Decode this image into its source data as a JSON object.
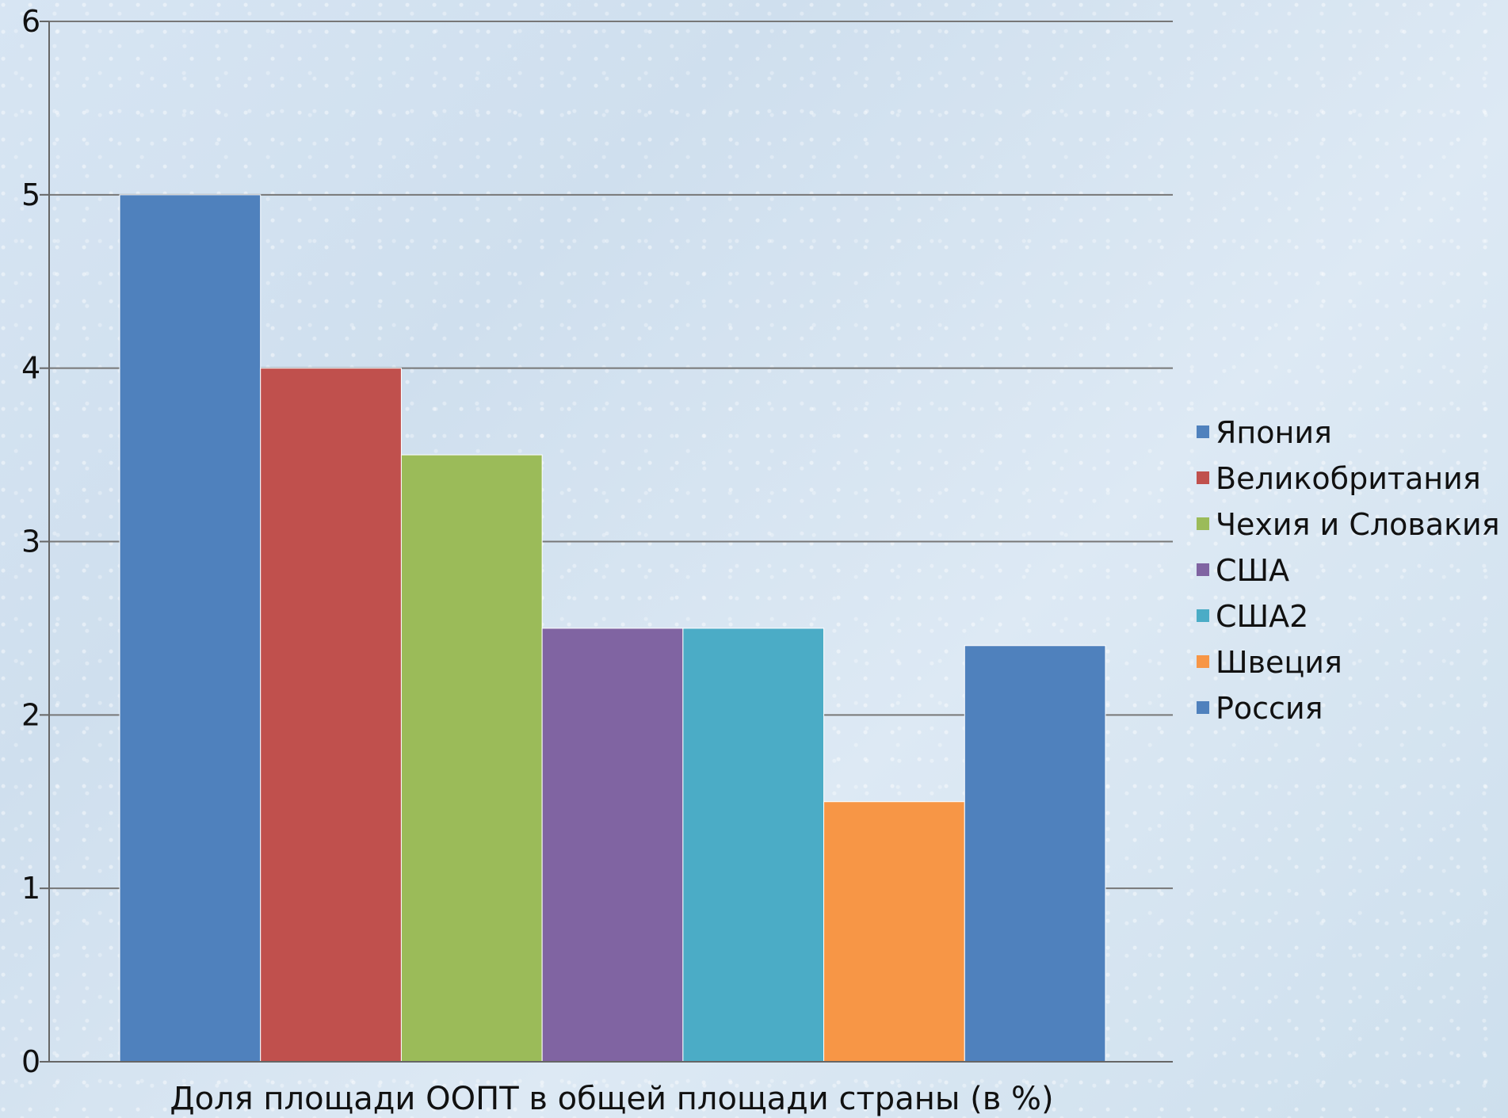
{
  "chart_data": {
    "type": "bar",
    "categories": [
      "Доля площади ООПТ в общей площади страны (в %)"
    ],
    "series": [
      {
        "name": "Япония",
        "values": [
          5.0
        ],
        "color": "#4F81BD"
      },
      {
        "name": "Великобритания",
        "values": [
          4.0
        ],
        "color": "#C0504D"
      },
      {
        "name": "Чехия и Словакия",
        "values": [
          3.5
        ],
        "color": "#9BBB59"
      },
      {
        "name": "США",
        "values": [
          2.5
        ],
        "color": "#8064A2"
      },
      {
        "name": "США2",
        "values": [
          2.5
        ],
        "color": "#4BACC6"
      },
      {
        "name": "Швеция",
        "values": [
          1.5
        ],
        "color": "#F79646"
      },
      {
        "name": "Россия",
        "values": [
          2.4
        ],
        "color": "#4F81BD"
      }
    ],
    "ylim": [
      0,
      6
    ],
    "yticks": [
      0,
      1,
      2,
      3,
      4,
      5,
      6
    ],
    "grid": true,
    "legend_position": "right"
  }
}
